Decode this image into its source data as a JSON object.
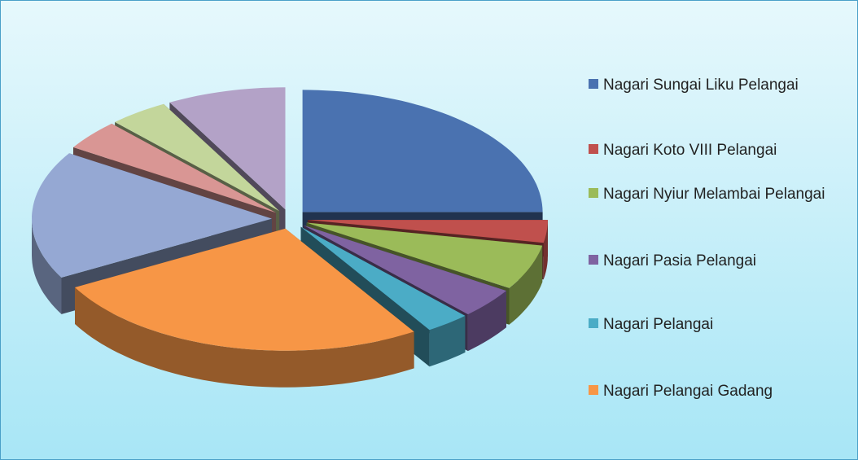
{
  "chart_data": {
    "type": "pie3d",
    "categories": [
      "Nagari Sungai Liku Pelangai",
      "Nagari Koto VIII Pelangai",
      "Nagari Nyiur Melambai Pelangai",
      "Nagari Pasia Pelangai",
      "Nagari Pelangai",
      "Nagari Pelangai Gadang",
      null,
      null,
      null,
      null
    ],
    "values": [
      25,
      3,
      6,
      4,
      3,
      26,
      17,
      4,
      4,
      8
    ],
    "colors": [
      "#4a72b0",
      "#c0504d",
      "#9bbb59",
      "#7f63a1",
      "#4bacc6",
      "#f79646",
      "#95a8d3",
      "#d99694",
      "#c3d69b",
      "#b3a2c7"
    ],
    "legend": "right"
  }
}
